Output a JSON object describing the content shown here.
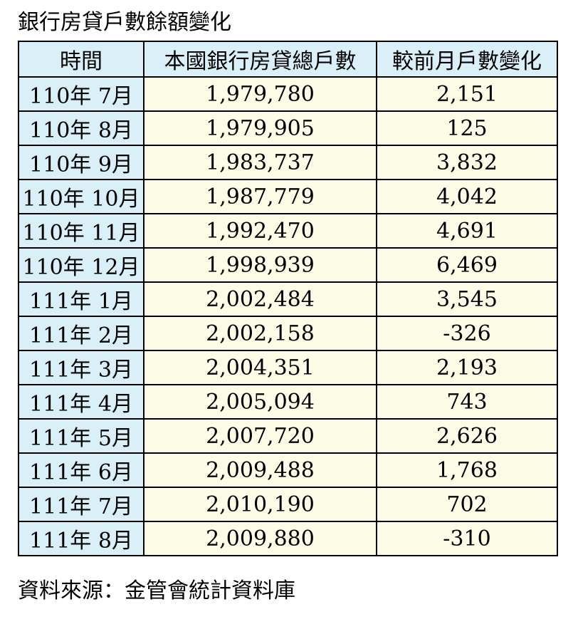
{
  "title": "銀行房貸戶數餘額變化",
  "colors": {
    "header_bg": "#d9f0f8",
    "period_bg": "#d9f0f8",
    "value_bg": "#fdfce6",
    "border": "#000000"
  },
  "table": {
    "headers": [
      "時間",
      "本國銀行房貸總戶數",
      "較前月戶數變化"
    ],
    "rows": [
      {
        "period": "110年 7月",
        "total": "1,979,780",
        "change": "2,151"
      },
      {
        "period": "110年 8月",
        "total": "1,979,905",
        "change": "125"
      },
      {
        "period": "110年 9月",
        "total": "1,983,737",
        "change": "3,832"
      },
      {
        "period": "110年 10月",
        "total": "1,987,779",
        "change": "4,042"
      },
      {
        "period": "110年 11月",
        "total": "1,992,470",
        "change": "4,691"
      },
      {
        "period": "110年 12月",
        "total": "1,998,939",
        "change": "6,469"
      },
      {
        "period": "111年 1月",
        "total": "2,002,484",
        "change": "3,545"
      },
      {
        "period": "111年 2月",
        "total": "2,002,158",
        "change": "-326"
      },
      {
        "period": "111年 3月",
        "total": "2,004,351",
        "change": "2,193"
      },
      {
        "period": "111年 4月",
        "total": "2,005,094",
        "change": "743"
      },
      {
        "period": "111年 5月",
        "total": "2,007,720",
        "change": "2,626"
      },
      {
        "period": "111年 6月",
        "total": "2,009,488",
        "change": "1,768"
      },
      {
        "period": "111年 7月",
        "total": "2,010,190",
        "change": "702"
      },
      {
        "period": "111年 8月",
        "total": "2,009,880",
        "change": "-310"
      }
    ]
  },
  "source": "資料來源：金管會統計資料庫"
}
